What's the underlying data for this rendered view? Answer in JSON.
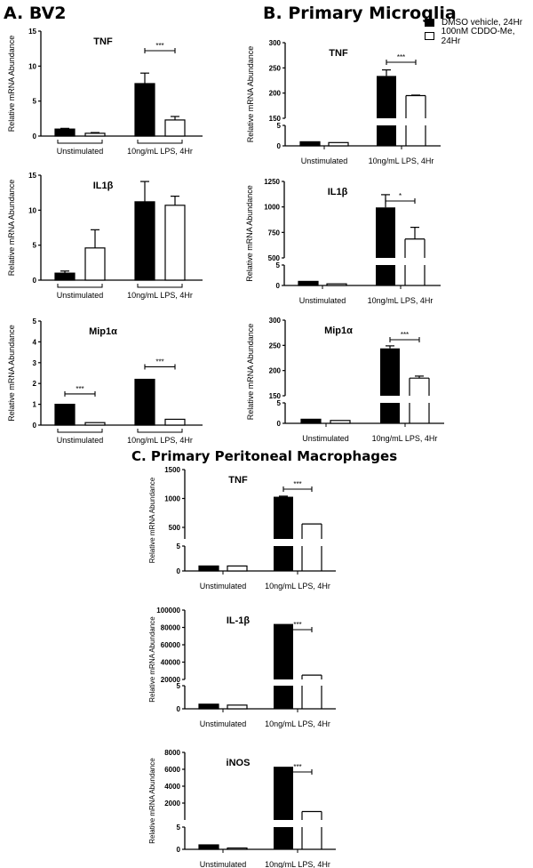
{
  "panels": {
    "a": {
      "label": "A. BV2"
    },
    "b": {
      "label": "B. Primary Microglia"
    },
    "c": {
      "label": "C. Primary Peritoneal Macrophages"
    }
  },
  "legend": {
    "items": [
      {
        "label": "DMSO vehicle, 24Hr",
        "color": "#000000"
      },
      {
        "label": "100nM CDDO-Me, 24Hr",
        "color": "#ffffff"
      }
    ]
  },
  "chart_data": [
    {
      "id": "a_tnf",
      "panel": "A. BV2",
      "type": "bar",
      "title": "TNF",
      "ylabel": "Relative mRNA Abundance",
      "categories": [
        "Unstimulated",
        "10ng/mL LPS, 4Hr"
      ],
      "series": [
        {
          "name": "DMSO vehicle, 24Hr",
          "values": [
            1.0,
            7.5
          ],
          "errors": [
            0.1,
            1.5
          ]
        },
        {
          "name": "100nM CDDO-Me, 24Hr",
          "values": [
            0.4,
            2.3
          ],
          "errors": [
            0.1,
            0.5
          ]
        }
      ],
      "ylim": [
        0,
        15
      ],
      "yticks": [
        "0",
        "5",
        "10",
        "15"
      ],
      "significance": [
        {
          "group": "10ng/mL LPS, 4Hr",
          "label": "***"
        }
      ]
    },
    {
      "id": "a_il1b",
      "panel": "A. BV2",
      "type": "bar",
      "title": "IL1β",
      "ylabel": "Relative mRNA Abundance",
      "categories": [
        "Unstimulated",
        "10ng/mL LPS, 4Hr"
      ],
      "series": [
        {
          "name": "DMSO vehicle, 24Hr",
          "values": [
            1.0,
            11.2
          ],
          "errors": [
            0.3,
            2.9
          ]
        },
        {
          "name": "100nM CDDO-Me, 24Hr",
          "values": [
            4.6,
            10.7
          ],
          "errors": [
            2.6,
            1.3
          ]
        }
      ],
      "ylim": [
        0,
        15
      ],
      "yticks": [
        "0",
        "5",
        "10",
        "15"
      ],
      "significance": []
    },
    {
      "id": "a_mip1a",
      "panel": "A. BV2",
      "type": "bar",
      "title": "Mip1α",
      "ylabel": "Relative mRNA Abundance",
      "categories": [
        "Unstimulated",
        "10ng/mL LPS, 4Hr"
      ],
      "series": [
        {
          "name": "DMSO vehicle, 24Hr",
          "values": [
            1.0,
            2.2
          ],
          "errors": [
            0,
            0
          ]
        },
        {
          "name": "100nM CDDO-Me, 24Hr",
          "values": [
            0.12,
            0.28
          ],
          "errors": [
            0,
            0
          ]
        }
      ],
      "ylim": [
        0,
        5
      ],
      "yticks": [
        "0",
        "1",
        "2",
        "3",
        "4",
        "5"
      ],
      "significance": [
        {
          "group": "Unstimulated",
          "label": "***"
        },
        {
          "group": "10ng/mL LPS, 4Hr",
          "label": "***"
        }
      ]
    },
    {
      "id": "b_tnf",
      "panel": "B. Primary Microglia",
      "type": "bar",
      "title": "TNF",
      "ylabel": "Relative mRNA Abundance",
      "categories": [
        "Unstimulated",
        "10ng/mL LPS, 4Hr"
      ],
      "series": [
        {
          "name": "DMSO vehicle, 24Hr",
          "values": [
            1.0,
            234
          ],
          "errors": [
            0,
            12
          ]
        },
        {
          "name": "100nM CDDO-Me, 24Hr",
          "values": [
            0.8,
            195
          ],
          "errors": [
            0,
            1
          ]
        }
      ],
      "broken_axis": true,
      "lower_ylim": [
        0,
        5
      ],
      "upper_ylim": [
        150,
        300
      ],
      "lower_ticks": [
        "0",
        "5"
      ],
      "upper_ticks": [
        "150",
        "200",
        "250",
        "300"
      ],
      "significance": [
        {
          "group": "10ng/mL LPS, 4Hr",
          "label": "***"
        }
      ]
    },
    {
      "id": "b_il1b",
      "panel": "B. Primary Microglia",
      "type": "bar",
      "title": "IL1β",
      "ylabel": "Relative mRNA Abundance",
      "categories": [
        "Unstimulated",
        "10ng/mL LPS, 4Hr"
      ],
      "series": [
        {
          "name": "DMSO vehicle, 24Hr",
          "values": [
            1.0,
            995
          ],
          "errors": [
            0,
            125
          ]
        },
        {
          "name": "100nM CDDO-Me, 24Hr",
          "values": [
            0.4,
            685
          ],
          "errors": [
            0,
            115
          ]
        }
      ],
      "broken_axis": true,
      "lower_ylim": [
        0,
        5
      ],
      "upper_ylim": [
        500,
        1250
      ],
      "lower_ticks": [
        "0",
        "5"
      ],
      "upper_ticks": [
        "500",
        "750",
        "1000",
        "1250"
      ],
      "significance": [
        {
          "group": "10ng/mL LPS, 4Hr",
          "label": "*"
        }
      ]
    },
    {
      "id": "b_mip1a",
      "panel": "B. Primary Microglia",
      "type": "bar",
      "title": "Mip1α",
      "ylabel": "Relative mRNA Abundance",
      "categories": [
        "Unstimulated",
        "10ng/mL LPS, 4Hr"
      ],
      "series": [
        {
          "name": "DMSO vehicle, 24Hr",
          "values": [
            1.0,
            244
          ],
          "errors": [
            0,
            5
          ]
        },
        {
          "name": "100nM CDDO-Me, 24Hr",
          "values": [
            0.7,
            185
          ],
          "errors": [
            0,
            4
          ]
        }
      ],
      "broken_axis": true,
      "lower_ylim": [
        0,
        5
      ],
      "upper_ylim": [
        150,
        300
      ],
      "lower_ticks": [
        "0",
        "5"
      ],
      "upper_ticks": [
        "150",
        "200",
        "250",
        "300"
      ],
      "significance": [
        {
          "group": "10ng/mL LPS, 4Hr",
          "label": "***"
        }
      ]
    },
    {
      "id": "c_tnf",
      "panel": "C. Primary Peritoneal Macrophages",
      "type": "bar",
      "title": "TNF",
      "ylabel": "Relative mRNA Abundance",
      "categories": [
        "Unstimulated",
        "10ng/mL LPS, 4Hr"
      ],
      "series": [
        {
          "name": "DMSO vehicle, 24Hr",
          "values": [
            1.0,
            1030
          ],
          "errors": [
            0,
            10
          ]
        },
        {
          "name": "100nM CDDO-Me, 24Hr",
          "values": [
            1.0,
            560
          ],
          "errors": [
            0,
            0
          ]
        }
      ],
      "broken_axis": true,
      "lower_ylim": [
        0,
        5
      ],
      "upper_ylim": [
        300,
        1500
      ],
      "lower_ticks": [
        "0",
        "5"
      ],
      "upper_ticks": [
        "500",
        "1000",
        "1500"
      ],
      "significance": [
        {
          "group": "10ng/mL LPS, 4Hr",
          "label": "***"
        }
      ]
    },
    {
      "id": "c_il1b",
      "panel": "C. Primary Peritoneal Macrophages",
      "type": "bar",
      "title": "IL-1β",
      "ylabel": "Relative mRNA Abundance",
      "categories": [
        "Unstimulated",
        "10ng/mL LPS, 4Hr"
      ],
      "series": [
        {
          "name": "DMSO vehicle, 24Hr",
          "values": [
            1.0,
            84000
          ],
          "errors": [
            0,
            0
          ]
        },
        {
          "name": "100nM CDDO-Me, 24Hr",
          "values": [
            0.8,
            25000
          ],
          "errors": [
            0,
            0
          ]
        }
      ],
      "broken_axis": true,
      "lower_ylim": [
        0,
        5
      ],
      "upper_ylim": [
        20000,
        100000
      ],
      "lower_ticks": [
        "0",
        "5"
      ],
      "upper_ticks": [
        "20000",
        "40000",
        "60000",
        "80000",
        "100000"
      ],
      "significance": [
        {
          "group": "10ng/mL LPS, 4Hr",
          "label": "***"
        }
      ]
    },
    {
      "id": "c_inos",
      "panel": "C. Primary Peritoneal Macrophages",
      "type": "bar",
      "title": "iNOS",
      "ylabel": "Relative mRNA Abundance",
      "categories": [
        "Unstimulated",
        "10ng/mL LPS, 4Hr"
      ],
      "series": [
        {
          "name": "DMSO vehicle, 24Hr",
          "values": [
            1.0,
            6300
          ],
          "errors": [
            0,
            0
          ]
        },
        {
          "name": "100nM CDDO-Me, 24Hr",
          "values": [
            0.3,
            1000
          ],
          "errors": [
            0,
            0
          ]
        }
      ],
      "broken_axis": true,
      "lower_ylim": [
        0,
        5
      ],
      "upper_ylim": [
        0,
        8000
      ],
      "lower_ticks": [
        "0",
        "5"
      ],
      "upper_ticks": [
        "2000",
        "4000",
        "6000",
        "8000"
      ],
      "significance": [
        {
          "group": "10ng/mL LPS, 4Hr",
          "label": "***"
        }
      ]
    }
  ]
}
